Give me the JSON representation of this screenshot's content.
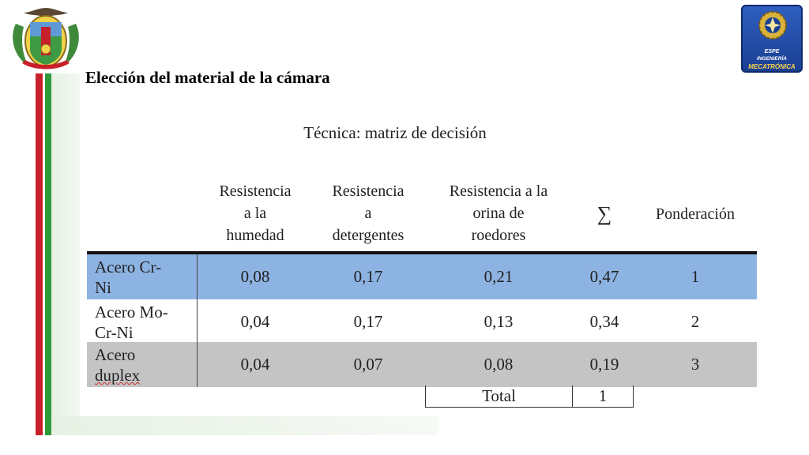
{
  "slide": {
    "title": "Elección del material de la cámara",
    "subtitle": "Técnica: matriz de decisión"
  },
  "logo_right": {
    "line1": "ESPE",
    "line2": "INGENIERÍA",
    "line3": "MECATRÓNICA"
  },
  "table": {
    "headers": [
      {
        "lines": [
          "Resistencia",
          "a la",
          "humedad"
        ]
      },
      {
        "lines": [
          "Resistencia",
          "a",
          "detergentes"
        ]
      },
      {
        "lines": [
          "Resistencia a la",
          "orina de",
          "roedores"
        ]
      },
      {
        "lines": [
          "∑"
        ]
      },
      {
        "lines": [
          "Ponderación"
        ]
      }
    ],
    "rows": [
      {
        "name_line1": "Acero  Cr-",
        "name_line2": "Ni",
        "values": [
          "0,08",
          "0,17",
          "0,21",
          "0,47",
          "1"
        ]
      },
      {
        "name_line1": "Acero Mo-",
        "name_line2": "Cr-Ni",
        "values": [
          "0,04",
          "0,17",
          "0,13",
          "0,34",
          "2"
        ]
      },
      {
        "name_line1": "Acero",
        "name_line2": "duplex",
        "values": [
          "0,04",
          "0,07",
          "0,08",
          "0,19",
          "3"
        ]
      }
    ],
    "total_label": "Total",
    "total_value": "1"
  },
  "colors": {
    "row_highlight": "#8db3e2",
    "row_gray": "#c4c4c4",
    "border_red": "#c8202a",
    "border_green": "#2e9a3a"
  },
  "icons": {
    "left_logo": "university-coat-of-arms-icon",
    "right_logo": "mechatronics-gear-emblem-icon"
  }
}
